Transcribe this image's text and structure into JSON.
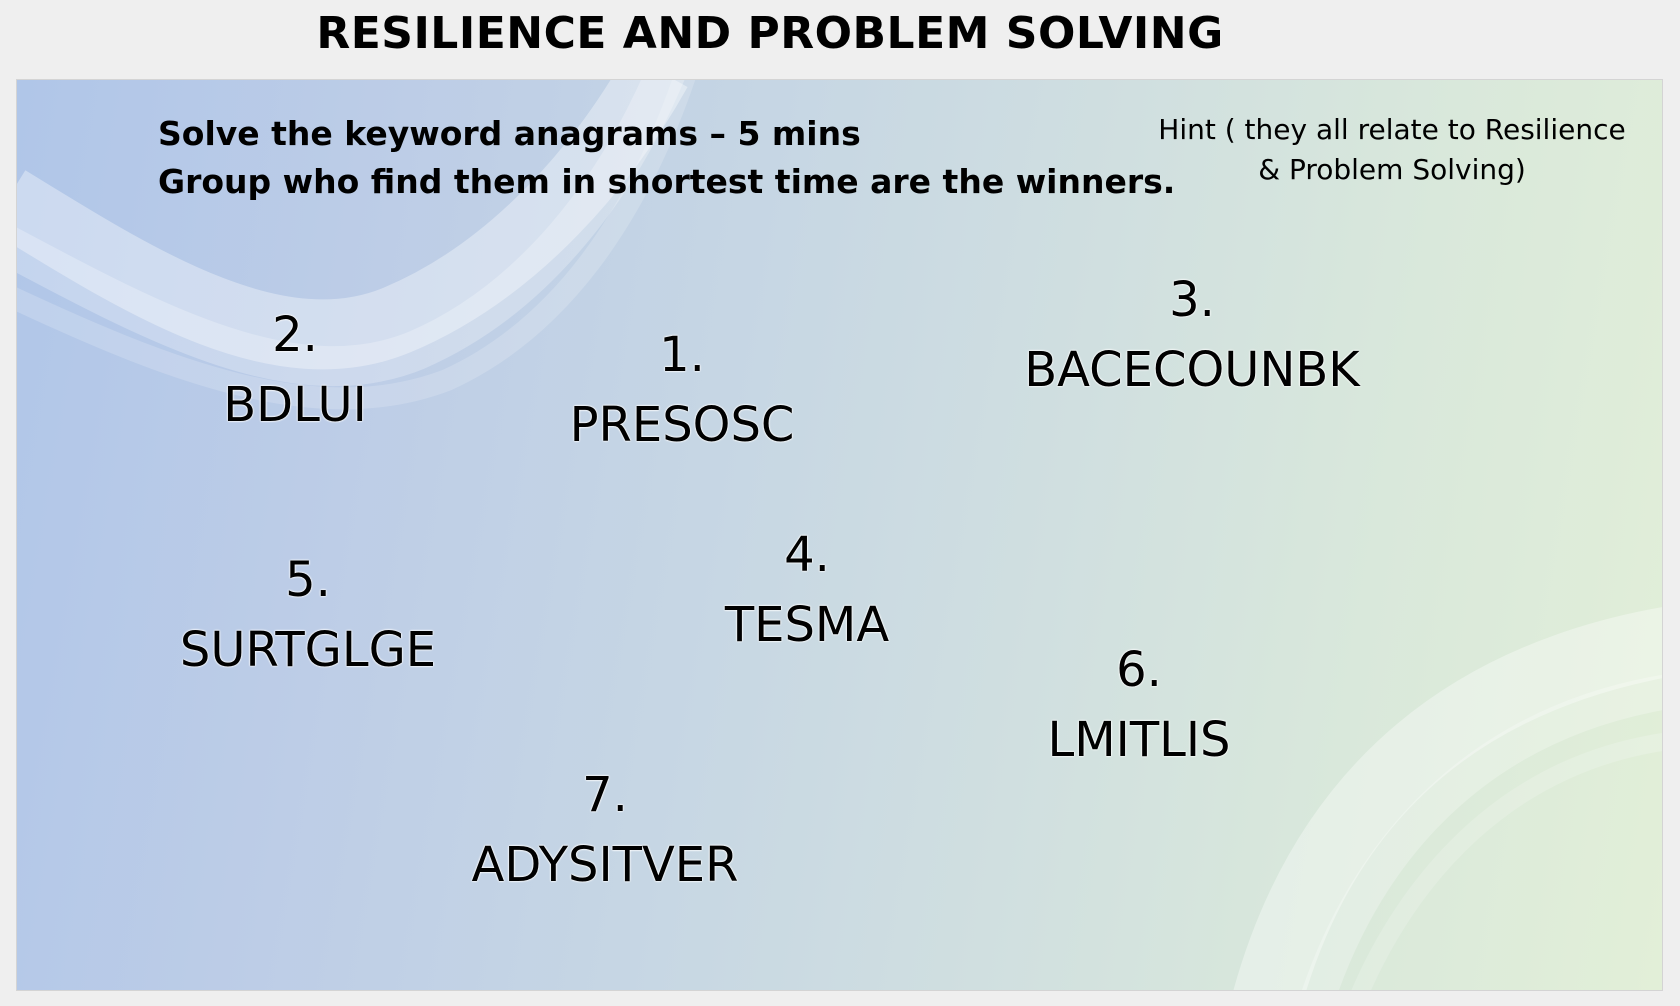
{
  "title": "RESILIENCE AND PROBLEM SOLVING",
  "instructions": {
    "line1": "Solve the keyword anagrams – 5 mins",
    "line2": "Group who find them in shortest time are the winners."
  },
  "hint": {
    "line1": "Hint ( they all relate to Resilience",
    "line2": "& Problem Solving)"
  },
  "anagrams": [
    {
      "number": "1.",
      "word": "PRESOSC"
    },
    {
      "number": "2.",
      "word": "BDLUI"
    },
    {
      "number": "3.",
      "word": "BACECOUNBK"
    },
    {
      "number": "4.",
      "word": "TESMA"
    },
    {
      "number": "5.",
      "word": "SURTGLGE"
    },
    {
      "number": "6.",
      "word": "LMITLIS"
    },
    {
      "number": "7.",
      "word": "ADYSITVER"
    }
  ],
  "colors": {
    "background": "#efefef",
    "slide_left": "#b0c6e8",
    "slide_right": "#e2efd8",
    "text": "#000000"
  }
}
